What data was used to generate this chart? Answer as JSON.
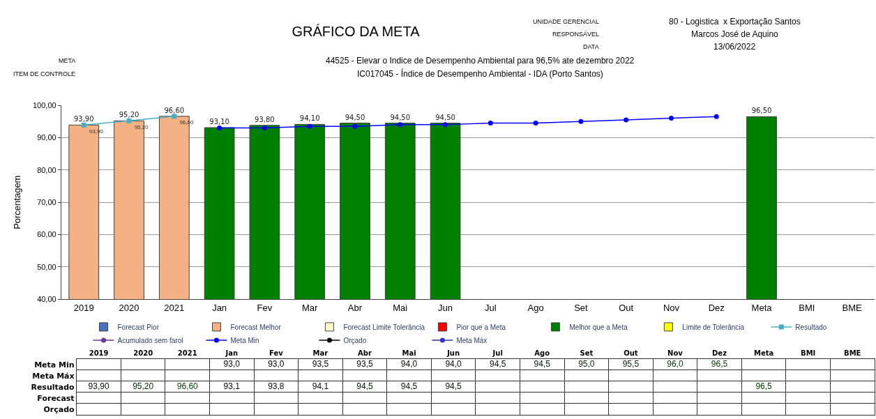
{
  "chart_data": [
    {
      "type": "bar",
      "title": "GRÁFICO DA META",
      "annotations": [
        "UNIDADE GERENCIAL",
        "80 - Logistica  x Exportação Santos",
        "RESPONSÁVEL",
        "Marcos José de Aquino",
        "DATA",
        "13/06/2022",
        "META",
        "44525 - Elevar o Indice de Desempenho Ambiental para 96,5% ate dezembro 2022",
        "ITEM DE CONTROLE",
        "IC017045 - Índice de Desempenho Ambiental - IDA (Porto Santos)"
      ],
      "ylabel": "Porcentagem",
      "categories": [
        "2019",
        "2020",
        "2021",
        "Jan",
        "Fev",
        "Mar",
        "Abr",
        "Mai",
        "Jun",
        "Jul",
        "Ago",
        "Set",
        "Out",
        "Nov",
        "Dez",
        "Meta",
        "BMI",
        "BME"
      ],
      "ylim": [
        40,
        100
      ],
      "yticks": [
        {
          "value": 40,
          "label": "40,00"
        },
        {
          "value": 50,
          "label": "50,00"
        },
        {
          "value": 60,
          "label": "60,00"
        },
        {
          "value": 70,
          "label": "70,00"
        },
        {
          "value": 80,
          "label": "80,00"
        },
        {
          "value": 90,
          "label": "90,00"
        },
        {
          "value": 100,
          "label": "100,00"
        }
      ],
      "grid": "y",
      "legend": "bottom",
      "series": [
        {
          "name": "Forecast Pior",
          "type": "bar",
          "color": "#4472c4",
          "values": [
            null,
            null,
            null,
            null,
            null,
            null,
            null,
            null,
            null,
            null,
            null,
            null,
            null,
            null,
            null,
            null,
            null,
            null
          ]
        },
        {
          "name": "Forecast Melhor",
          "type": "bar",
          "color": "#f4b183",
          "values": [
            93.9,
            95.2,
            96.6,
            null,
            null,
            null,
            null,
            null,
            null,
            null,
            null,
            null,
            null,
            null,
            null,
            null,
            null,
            null
          ],
          "value_labels": [
            "93,90",
            "95,20",
            "96,60",
            null,
            null,
            null,
            null,
            null,
            null,
            null,
            null,
            null,
            null,
            null,
            null,
            null,
            null,
            null
          ]
        },
        {
          "name": "Forecast Limite Tolerância",
          "type": "bar",
          "color": "#ffffcc",
          "values": [
            null,
            null,
            null,
            null,
            null,
            null,
            null,
            null,
            null,
            null,
            null,
            null,
            null,
            null,
            null,
            null,
            null,
            null
          ]
        },
        {
          "name": "Pior que a Meta",
          "type": "bar",
          "color": "#ff0000",
          "values": [
            null,
            null,
            null,
            null,
            null,
            null,
            null,
            null,
            null,
            null,
            null,
            null,
            null,
            null,
            null,
            null,
            null,
            null
          ]
        },
        {
          "name": "Melhor que a Meta",
          "type": "bar",
          "color": "#008000",
          "values": [
            null,
            null,
            null,
            93.1,
            93.8,
            94.1,
            94.5,
            94.5,
            94.5,
            null,
            null,
            null,
            null,
            null,
            null,
            96.5,
            null,
            null
          ],
          "value_labels": [
            null,
            null,
            null,
            "93,10",
            "93,80",
            "94,10",
            "94,50",
            "94,50",
            "94,50",
            null,
            null,
            null,
            null,
            null,
            null,
            "96,50",
            null,
            null
          ]
        },
        {
          "name": "Limite de Tolerância",
          "type": "bar",
          "color": "#ffff00",
          "values": [
            null,
            null,
            null,
            null,
            null,
            null,
            null,
            null,
            null,
            null,
            null,
            null,
            null,
            null,
            null,
            null,
            null,
            null
          ]
        },
        {
          "name": "Resultado",
          "type": "line",
          "color": "#4bacc6",
          "marker": "square",
          "values": [
            93.9,
            95.2,
            96.6,
            null,
            null,
            null,
            null,
            null,
            null,
            null,
            null,
            null,
            null,
            null,
            null,
            null,
            null,
            null
          ],
          "value_labels": [
            "93,90",
            "95,20",
            "96,60",
            null,
            null,
            null,
            null,
            null,
            null,
            null,
            null,
            null,
            null,
            null,
            null,
            null,
            null,
            null
          ]
        },
        {
          "name": "Acumulado sem farol",
          "type": "line",
          "color": "#7030a0",
          "marker": "circle",
          "values": [
            null,
            null,
            null,
            null,
            null,
            null,
            null,
            null,
            null,
            null,
            null,
            null,
            null,
            null,
            null,
            null,
            null,
            null
          ]
        },
        {
          "name": "Meta Min",
          "type": "line",
          "color": "#0000ff",
          "marker": "circle",
          "values": [
            null,
            null,
            null,
            93.0,
            93.0,
            93.5,
            93.5,
            94.0,
            94.0,
            94.5,
            94.5,
            95.0,
            95.5,
            96.0,
            96.5,
            null,
            null,
            null
          ]
        },
        {
          "name": "Orçado",
          "type": "line",
          "color": "#000000",
          "marker": "circle",
          "values": [
            null,
            null,
            null,
            null,
            null,
            null,
            null,
            null,
            null,
            null,
            null,
            null,
            null,
            null,
            null,
            null,
            null,
            null
          ]
        },
        {
          "name": "Meta Máx",
          "type": "line",
          "color": "#3333cc",
          "marker": "circle",
          "values": [
            null,
            null,
            null,
            null,
            null,
            null,
            null,
            null,
            null,
            null,
            null,
            null,
            null,
            null,
            null,
            null,
            null,
            null
          ]
        }
      ]
    },
    {
      "type": "heatmap",
      "cells": [
        [
          null,
          null,
          null,
          93.0,
          93.0,
          93.5,
          93.5,
          94.0,
          94.0,
          94.5,
          94.5,
          95.0,
          95.5,
          96.0,
          96.5,
          null,
          null,
          null
        ],
        [
          null,
          null,
          null,
          null,
          null,
          null,
          null,
          null,
          null,
          null,
          null,
          null,
          null,
          null,
          null,
          null,
          null,
          null
        ],
        [
          93.9,
          95.2,
          96.6,
          93.1,
          93.8,
          94.1,
          94.5,
          94.5,
          94.5,
          null,
          null,
          null,
          null,
          null,
          null,
          96.5,
          null,
          null
        ],
        [
          null,
          null,
          null,
          null,
          null,
          null,
          null,
          null,
          null,
          null,
          null,
          null,
          null,
          null,
          null,
          null,
          null,
          null
        ],
        [
          null,
          null,
          null,
          null,
          null,
          null,
          null,
          null,
          null,
          null,
          null,
          null,
          null,
          null,
          null,
          null,
          null,
          null
        ]
      ],
      "categories": [
        "2019",
        "2020",
        "2021",
        "Jan",
        "Fev",
        "Mar",
        "Abr",
        "Mai",
        "Jun",
        "Jul",
        "Ago",
        "Set",
        "Out",
        "Nov",
        "Dez",
        "Meta",
        "BMI",
        "BME"
      ],
      "y_categories": [
        "Meta Min",
        "Meta Máx",
        "Resultado",
        "Forecast",
        "Orçado"
      ],
      "cell_labels": [
        [
          null,
          null,
          null,
          "93,0",
          "93,0",
          "93,5",
          "93,5",
          "94,0",
          "94,0",
          "94,5",
          "94,5",
          "95,0",
          "95,5",
          "96,0",
          "96,5",
          null,
          null,
          null
        ],
        [
          null,
          null,
          null,
          null,
          null,
          null,
          null,
          null,
          null,
          null,
          null,
          null,
          null,
          null,
          null,
          null,
          null,
          null
        ],
        [
          "93,90",
          "95,20",
          "96,60",
          "93,1",
          "93,8",
          "94,1",
          "94,5",
          "94,5",
          "94,5",
          null,
          null,
          null,
          null,
          null,
          null,
          "96,5",
          null,
          null
        ],
        [
          null,
          null,
          null,
          null,
          null,
          null,
          null,
          null,
          null,
          null,
          null,
          null,
          null,
          null,
          null,
          null,
          null,
          null
        ],
        [
          null,
          null,
          null,
          null,
          null,
          null,
          null,
          null,
          null,
          null,
          null,
          null,
          null,
          null,
          null,
          null,
          null,
          null
        ]
      ]
    }
  ]
}
